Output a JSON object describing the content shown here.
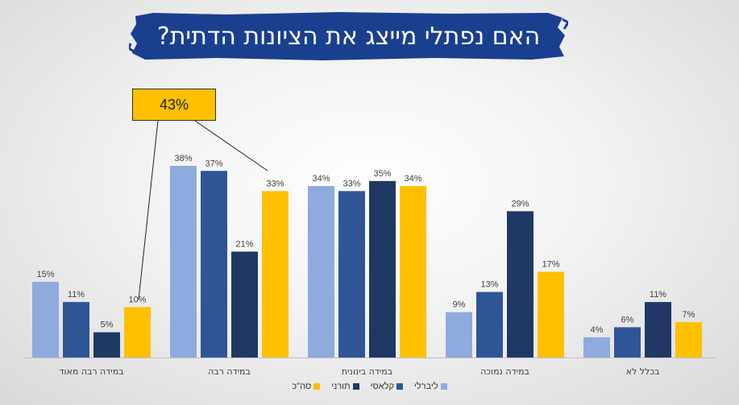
{
  "title": "האם נפתלי מייצג את הציונות הדתית?",
  "callout": "43%",
  "colors": {
    "banner": "#1a3f8f",
    "liberal": "#8faadc",
    "classic": "#2f5597",
    "torani": "#1f3864",
    "total": "#ffc000"
  },
  "chart_data": {
    "type": "bar",
    "categories": [
      "במידה רבה מאוד",
      "במידה רבה",
      "במידה בינונית",
      "במידה נמוכה",
      "בכלל לא"
    ],
    "series": [
      {
        "name": "ליברלי",
        "values": [
          15,
          38,
          34,
          9,
          4
        ]
      },
      {
        "name": "קלאסי",
        "values": [
          11,
          37,
          33,
          13,
          6
        ]
      },
      {
        "name": "תורני",
        "values": [
          5,
          21,
          35,
          29,
          11
        ]
      },
      {
        "name": "סה\"כ",
        "values": [
          10,
          33,
          34,
          17,
          7
        ]
      }
    ],
    "value_suffix": "%",
    "ylim": [
      0,
      43
    ],
    "legend_position": "bottom",
    "grid": false
  }
}
